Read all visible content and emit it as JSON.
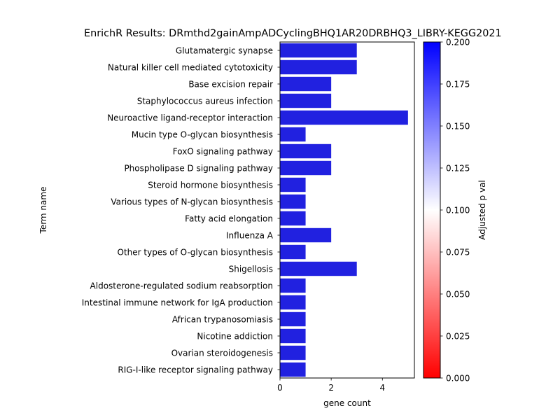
{
  "chart_data": {
    "type": "bar",
    "orientation": "horizontal",
    "title": "EnrichR Results: DRmthd2gainAmpADCyclingBHQ1AR20DRBHQ3_LIBRY-KEGG2021",
    "xlabel": "gene count",
    "ylabel": "Term name",
    "xlim": [
      0,
      5.25
    ],
    "x_ticks": [
      "0",
      "2",
      "4"
    ],
    "categories": [
      "Glutamatergic synapse",
      "Natural killer cell mediated cytotoxicity",
      "Base excision repair",
      "Staphylococcus aureus infection",
      "Neuroactive ligand-receptor interaction",
      "Mucin type O-glycan biosynthesis",
      "FoxO signaling pathway",
      "Phospholipase D signaling pathway",
      "Steroid hormone biosynthesis",
      "Various types of N-glycan biosynthesis",
      "Fatty acid elongation",
      "Influenza A",
      "Other types of O-glycan biosynthesis",
      "Shigellosis",
      "Aldosterone-regulated sodium reabsorption",
      "Intestinal immune network for IgA production",
      "African trypanosomiasis",
      "Nicotine addiction",
      "Ovarian steroidogenesis",
      "RIG-I-like receptor signaling pathway"
    ],
    "values": [
      3,
      3,
      2,
      2,
      5,
      1,
      2,
      2,
      1,
      1,
      1,
      2,
      1,
      3,
      1,
      1,
      1,
      1,
      1,
      1
    ],
    "bar_color": "#2121e0",
    "grid": false,
    "colorbar": {
      "label": "Adjusted p val",
      "range": [
        0,
        0.2
      ],
      "ticks": [
        "0.000",
        "0.025",
        "0.050",
        "0.075",
        "0.100",
        "0.125",
        "0.150",
        "0.175",
        "0.200"
      ],
      "colors": [
        "#ff0000",
        "#ffffff",
        "#0000ff"
      ]
    }
  }
}
